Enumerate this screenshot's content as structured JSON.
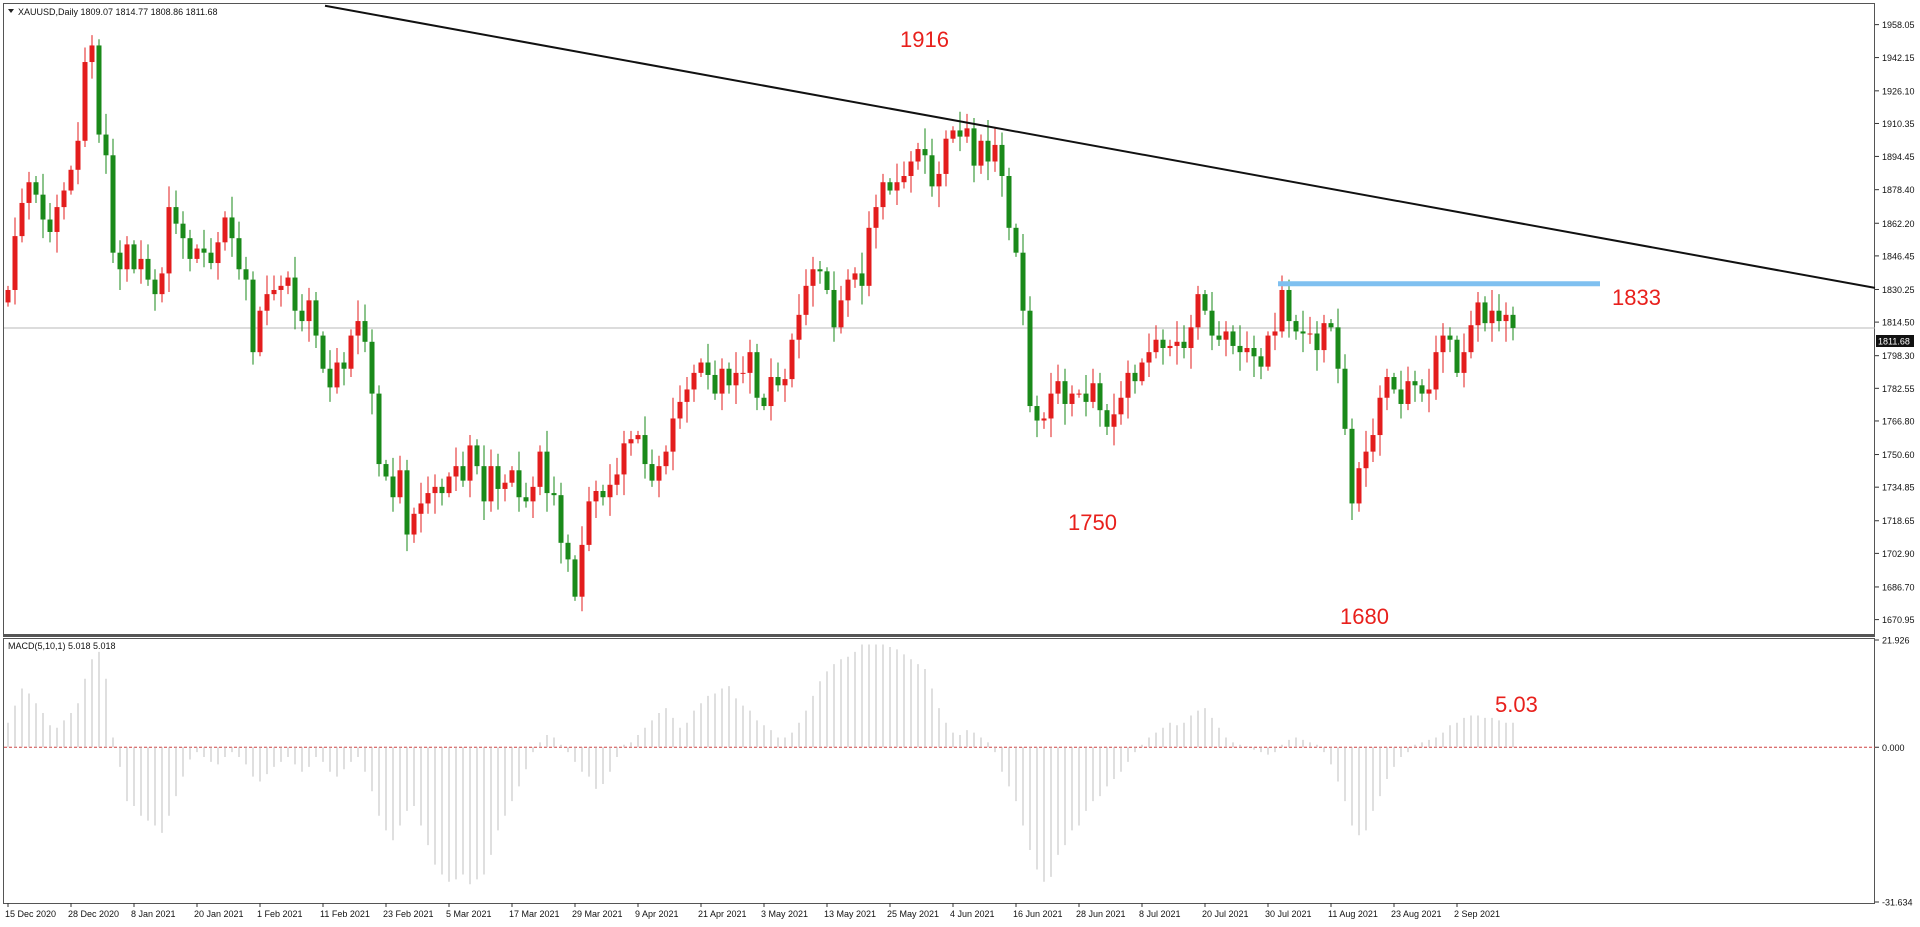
{
  "header": {
    "symbol_line": "XAUUSD,Daily  1809.07 1814.77 1808.86 1811.68",
    "price_tag": "1811.68"
  },
  "macd_panel": {
    "title": "MACD(5,10,1) 5.018 5.018"
  },
  "annotations": [
    {
      "text": "1916",
      "color": "#e8201c"
    },
    {
      "text": "1833",
      "color": "#e8201c"
    },
    {
      "text": "1750",
      "color": "#e8201c"
    },
    {
      "text": "1680",
      "color": "#e8201c"
    },
    {
      "text": "5.03",
      "color": "#e8201c"
    }
  ],
  "colors": {
    "bull": "#e31d1d",
    "bear": "#1a8a1a",
    "trendline": "#111111",
    "resistance": "#7fc0f0",
    "zero_line": "#d04040"
  },
  "chart_data": [
    {
      "type": "candlestick",
      "title": "XAUUSD,Daily",
      "ylim": [
        1664.0,
        1968.0
      ],
      "y_ticks": [
        1958.05,
        1942.15,
        1926.1,
        1910.35,
        1894.45,
        1878.4,
        1862.2,
        1846.45,
        1830.25,
        1814.5,
        1798.3,
        1782.55,
        1766.8,
        1750.6,
        1734.85,
        1718.65,
        1702.9,
        1686.7,
        1670.95
      ],
      "x_ticks": [
        "15 Dec 2020",
        "28 Dec 2020",
        "8 Jan 2021",
        "20 Jan 2021",
        "1 Feb 2021",
        "11 Feb 2021",
        "23 Feb 2021",
        "5 Mar 2021",
        "17 Mar 2021",
        "29 Mar 2021",
        "9 Apr 2021",
        "21 Apr 2021",
        "3 May 2021",
        "13 May 2021",
        "25 May 2021",
        "4 Jun 2021",
        "16 Jun 2021",
        "28 Jun 2021",
        "8 Jul 2021",
        "20 Jul 2021",
        "30 Jul 2021",
        "11 Aug 2021",
        "23 Aug 2021",
        "2 Sep 2021"
      ],
      "current_price": 1811.68,
      "closes": [
        1830,
        1856,
        1872,
        1882,
        1876,
        1864,
        1858,
        1870,
        1878,
        1888,
        1902,
        1940,
        1948,
        1905,
        1895,
        1848,
        1840,
        1852,
        1840,
        1845,
        1835,
        1828,
        1838,
        1870,
        1862,
        1855,
        1845,
        1850,
        1848,
        1843,
        1853,
        1865,
        1855,
        1840,
        1835,
        1800,
        1820,
        1828,
        1830,
        1832,
        1836,
        1820,
        1815,
        1825,
        1808,
        1792,
        1783,
        1795,
        1792,
        1808,
        1815,
        1805,
        1780,
        1746,
        1740,
        1730,
        1743,
        1712,
        1722,
        1727,
        1732,
        1735,
        1732,
        1740,
        1745,
        1738,
        1755,
        1745,
        1728,
        1745,
        1734,
        1737,
        1743,
        1730,
        1728,
        1735,
        1752,
        1732,
        1731,
        1708,
        1700,
        1682,
        1707,
        1728,
        1733,
        1730,
        1736,
        1741,
        1756,
        1758,
        1760,
        1746,
        1738,
        1745,
        1752,
        1768,
        1776,
        1782,
        1790,
        1795,
        1789,
        1780,
        1792,
        1784,
        1790,
        1790,
        1800,
        1778,
        1774,
        1788,
        1784,
        1787,
        1806,
        1818,
        1832,
        1840,
        1839,
        1830,
        1812,
        1825,
        1835,
        1838,
        1832,
        1860,
        1870,
        1882,
        1878,
        1882,
        1885,
        1892,
        1898,
        1895,
        1880,
        1886,
        1903,
        1907,
        1904,
        1908,
        1890,
        1902,
        1892,
        1900,
        1885,
        1860,
        1848,
        1820,
        1774,
        1767,
        1768,
        1780,
        1786,
        1775,
        1780,
        1780,
        1776,
        1785,
        1772,
        1764,
        1770,
        1778,
        1790,
        1786,
        1795,
        1800,
        1806,
        1802,
        1803,
        1805,
        1802,
        1812,
        1828,
        1820,
        1808,
        1806,
        1810,
        1803,
        1800,
        1802,
        1798,
        1793,
        1808,
        1810,
        1830,
        1815,
        1810,
        1809,
        1809,
        1801,
        1814,
        1812,
        1792,
        1763,
        1727,
        1744,
        1752,
        1760,
        1778,
        1788,
        1782,
        1775,
        1786,
        1784,
        1780,
        1782,
        1800,
        1808,
        1806,
        1790,
        1800,
        1813,
        1824,
        1814,
        1820,
        1815,
        1818,
        1811.68
      ],
      "macd": [
        5.0,
        8.5,
        12.0,
        11.0,
        9.0,
        7.0,
        4.5,
        4.0,
        5.5,
        7.0,
        9.0,
        14.0,
        18.0,
        19.5,
        14.0,
        2.0,
        -4.0,
        -11.0,
        -12.0,
        -14.0,
        -15.0,
        -16.0,
        -17.5,
        -14.0,
        -10.0,
        -6.0,
        -2.5,
        -1.0,
        -2.0,
        -3.0,
        -3.5,
        -2.0,
        -1.0,
        -2.0,
        -3.5,
        -6.0,
        -7.0,
        -5.5,
        -4.0,
        -3.0,
        -2.0,
        -3.5,
        -5.0,
        -4.0,
        -2.0,
        -3.0,
        -5.0,
        -6.0,
        -4.5,
        -3.0,
        -2.0,
        -5.0,
        -9.0,
        -14.0,
        -17.0,
        -19.0,
        -16.0,
        -13.0,
        -12.0,
        -16.0,
        -20.0,
        -24.0,
        -26.0,
        -27.5,
        -27.0,
        -26.0,
        -28.0,
        -27.0,
        -26.0,
        -22.0,
        -17.0,
        -14.0,
        -11.0,
        -8.0,
        -4.5,
        -1.0,
        1.0,
        2.5,
        2.0,
        0.5,
        -1.0,
        -3.0,
        -5.0,
        -6.0,
        -8.5,
        -7.5,
        -5.0,
        -2.0,
        0.5,
        1.0,
        2.5,
        4.0,
        5.5,
        7.0,
        8.0,
        6.0,
        4.0,
        5.0,
        7.5,
        9.0,
        10.5,
        11.0,
        12.0,
        12.5,
        10.0,
        8.5,
        7.5,
        5.5,
        4.5,
        3.5,
        2.0,
        2.0,
        3.0,
        5.0,
        7.5,
        10.5,
        13.5,
        15.5,
        17.0,
        18.0,
        18.5,
        19.5,
        21.0,
        21.0,
        21.0,
        21.0,
        20.5,
        20.0,
        19.0,
        18.0,
        17.0,
        16.0,
        12.0,
        8.0,
        5.0,
        3.0,
        2.5,
        3.5,
        3.0,
        2.0,
        1.0,
        -1.0,
        -5.0,
        -8.0,
        -11.0,
        -16.0,
        -21.0,
        -25.0,
        -27.5,
        -26.5,
        -22.0,
        -20.0,
        -17.0,
        -16.0,
        -13.0,
        -11.0,
        -10.0,
        -8.0,
        -6.5,
        -5.0,
        -3.0,
        -1.0,
        0.5,
        2.0,
        3.0,
        4.0,
        5.0,
        4.5,
        5.0,
        6.5,
        7.5,
        8.0,
        6.0,
        4.0,
        2.0,
        1.0,
        0.5,
        0.2,
        -0.5,
        -1.0,
        -1.5,
        -1.0,
        0.5,
        1.5,
        2.0,
        1.5,
        1.0,
        0.5,
        -1.0,
        -3.5,
        -7.0,
        -11.0,
        -16.0,
        -18.0,
        -17.0,
        -13.0,
        -10.0,
        -6.5,
        -4.0,
        -2.0,
        -1.0,
        0.5,
        1.0,
        1.5,
        2.0,
        3.0,
        4.5,
        5.0,
        6.0,
        6.5,
        6.5,
        6.0,
        6.0,
        5.5,
        5.0,
        5.0
      ],
      "macd_ylim": [
        -31.634,
        21.926
      ],
      "macd_ticks": [
        21.926,
        0.0,
        -31.634
      ],
      "trendline": {
        "from": {
          "date": "15 Dec 2020",
          "price": 1995
        },
        "to": {
          "date": "2 Sep 2021",
          "price": 1831
        }
      },
      "resistance": {
        "price": 1833
      }
    }
  ]
}
